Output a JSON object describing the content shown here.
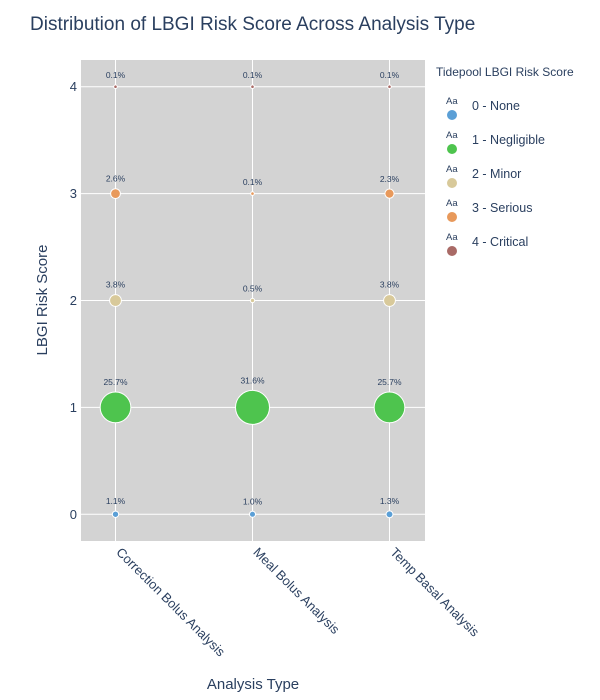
{
  "chart_data": {
    "type": "scatter",
    "title": "Distribution of LBGI Risk Score Across Analysis Type",
    "xlabel": "Analysis Type",
    "ylabel": "LBGI Risk Score",
    "categories": [
      "Correction Bolus Analysis",
      "Meal Bolus Analysis",
      "Temp Basal Analysis"
    ],
    "yticks": [
      "0",
      "1",
      "2",
      "3",
      "4"
    ],
    "ylim": [
      -0.25,
      4.25
    ],
    "grid": true,
    "plot_background": "#d3d3d3",
    "legend": {
      "title": "Tidepool LBGI Risk Score",
      "placement": "right",
      "symbol_text": "Aa"
    },
    "series": [
      {
        "name": "0 - None",
        "color": "#5b9fd6",
        "y": 0,
        "values": [
          1.1,
          1.0,
          1.3
        ],
        "labels": [
          "1.1%",
          "1.0%",
          "1.3%"
        ]
      },
      {
        "name": "1 - Negligible",
        "color": "#4ec44e",
        "y": 1,
        "values": [
          25.7,
          31.6,
          25.7
        ],
        "labels": [
          "25.7%",
          "31.6%",
          "25.7%"
        ]
      },
      {
        "name": "2 - Minor",
        "color": "#d8c99a",
        "y": 2,
        "values": [
          3.8,
          0.5,
          3.8
        ],
        "labels": [
          "3.8%",
          "0.5%",
          "3.8%"
        ]
      },
      {
        "name": "3 - Serious",
        "color": "#e8995b",
        "y": 3,
        "values": [
          2.6,
          0.1,
          2.3
        ],
        "labels": [
          "2.6%",
          "0.1%",
          "2.3%"
        ]
      },
      {
        "name": "4 - Critical",
        "color": "#a96a66",
        "y": 4,
        "values": [
          0.1,
          0.1,
          0.1
        ],
        "labels": [
          "0.1%",
          "0.1%",
          "0.1%"
        ]
      }
    ]
  }
}
